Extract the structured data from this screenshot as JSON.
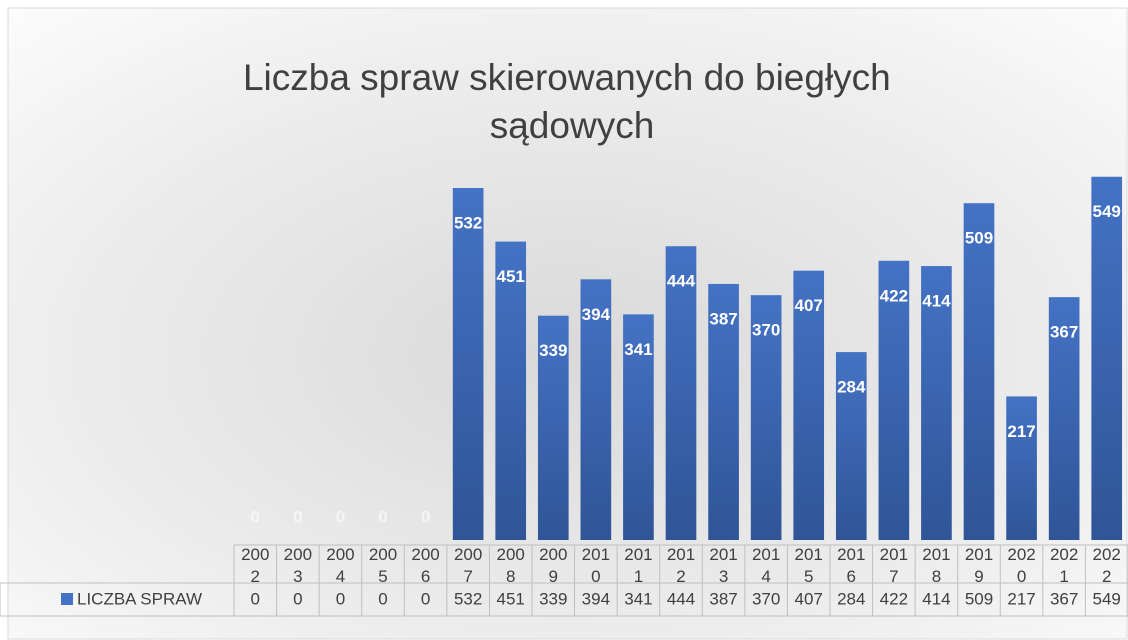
{
  "chart_data": {
    "type": "bar",
    "title": "Liczba spraw skierowanych do biegłych sądowych",
    "categories": [
      "2002",
      "2003",
      "2004",
      "2005",
      "2006",
      "2007",
      "2008",
      "2009",
      "2010",
      "2011",
      "2012",
      "2013",
      "2014",
      "2015",
      "2016",
      "2017",
      "2018",
      "2019",
      "2020",
      "2021",
      "2022"
    ],
    "series": [
      {
        "name": "LICZBA SPRAW",
        "color": "#4472c4",
        "values": [
          0,
          0,
          0,
          0,
          0,
          532,
          451,
          339,
          394,
          341,
          444,
          387,
          370,
          407,
          284,
          422,
          414,
          509,
          217,
          367,
          549
        ]
      }
    ],
    "ylim": [
      0,
      600
    ]
  }
}
